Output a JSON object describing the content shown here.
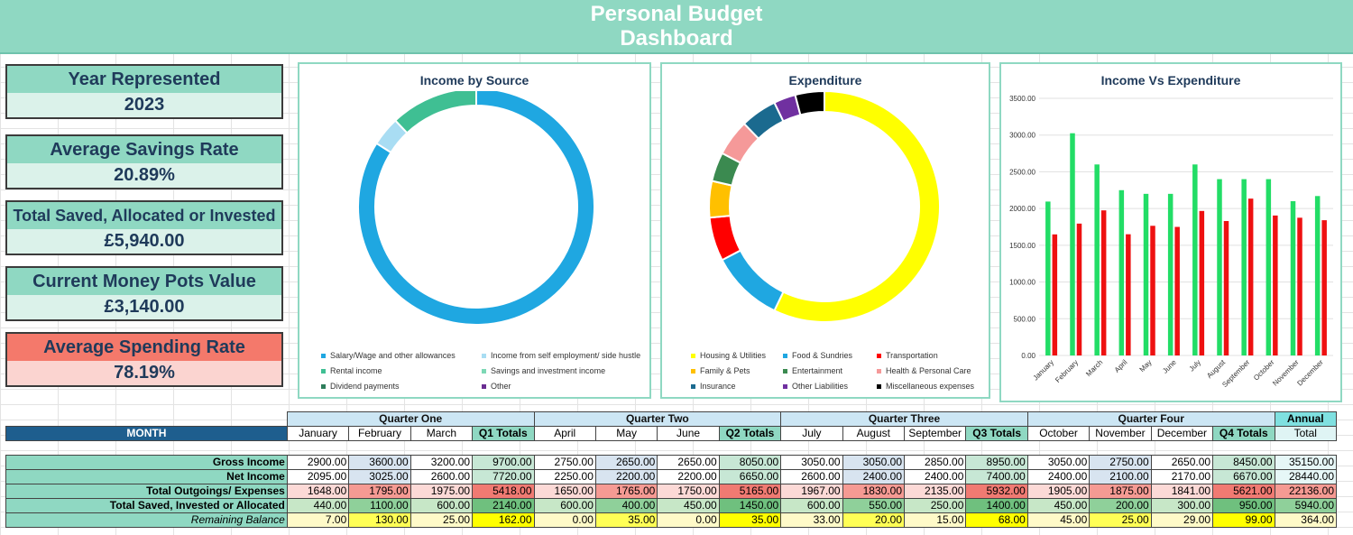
{
  "header": {
    "line1": "Personal Budget",
    "line2": "Dashboard"
  },
  "kpis": {
    "year": {
      "label": "Year Represented",
      "value": "2023"
    },
    "savings_rate": {
      "label": "Average Savings Rate",
      "value": "20.89%"
    },
    "total_saved": {
      "label": "Total Saved, Allocated or Invested",
      "value": "£5,940.00"
    },
    "money_pots": {
      "label": "Current Money Pots Value",
      "value": "£3,140.00"
    },
    "spending_rate": {
      "label": "Average Spending Rate",
      "value": "78.19%"
    }
  },
  "colors": {
    "accent": "#8fd8c2",
    "navy": "#1e5e8e",
    "income_bar": "#22dd66",
    "expense_bar": "#ee1111"
  },
  "chart_data": [
    {
      "type": "pie",
      "title": "Income by Source",
      "labels": [
        "Salary/Wage and other allowances",
        "Income from self employment/ side hustle",
        "Rental income",
        "Savings and investment income",
        "Dividend payments",
        "Other"
      ],
      "values": [
        84,
        4,
        12,
        0,
        0,
        0
      ],
      "colors": [
        "#1fa7e1",
        "#a9ddf3",
        "#3fbf93",
        "#7dd8b5",
        "#2e7d5b",
        "#6a2d91"
      ]
    },
    {
      "type": "pie",
      "title": "Expenditure",
      "labels": [
        "Housing & Utilities",
        "Food & Sundries",
        "Transportation",
        "Family & Pets",
        "Entertainment",
        "Health & Personal Care",
        "Insurance",
        "Other Liabilities",
        "Miscellaneous expenses"
      ],
      "values": [
        56,
        10,
        6,
        5,
        4,
        5,
        5,
        3,
        4
      ],
      "colors": [
        "#ffff00",
        "#1fa7e1",
        "#ff0000",
        "#ffc000",
        "#3b8a50",
        "#f59999",
        "#1b6a8f",
        "#7030a0",
        "#000000"
      ]
    },
    {
      "type": "bar",
      "title": "Income Vs Expenditure",
      "categories": [
        "January",
        "February",
        "March",
        "April",
        "May",
        "June",
        "July",
        "August",
        "September",
        "October",
        "November",
        "December"
      ],
      "series": [
        {
          "values": [
            2095,
            3025,
            2600,
            2250,
            2200,
            2200,
            2600,
            2400,
            2400,
            2400,
            2100,
            2170
          ],
          "color": "#22dd66"
        },
        {
          "values": [
            1648,
            1795,
            1975,
            1650,
            1765,
            1750,
            1967,
            1830,
            2135,
            1905,
            1875,
            1841
          ],
          "color": "#ee1111"
        }
      ],
      "yticks": [
        "0.00",
        "500.00",
        "1000.00",
        "1500.00",
        "2000.00",
        "2500.00",
        "3000.00",
        "3500.00"
      ],
      "ylim": [
        0,
        3500
      ]
    }
  ],
  "table": {
    "month_label": "MONTH",
    "quarters": [
      {
        "title": "Quarter One",
        "months": [
          "January",
          "February",
          "March"
        ],
        "total_label": "Q1 Totals"
      },
      {
        "title": "Quarter Two",
        "months": [
          "April",
          "May",
          "June"
        ],
        "total_label": "Q2 Totals"
      },
      {
        "title": "Quarter Three",
        "months": [
          "July",
          "August",
          "September"
        ],
        "total_label": "Q3 Totals"
      },
      {
        "title": "Quarter Four",
        "months": [
          "October",
          "November",
          "December"
        ],
        "total_label": "Q4 Totals"
      }
    ],
    "annual": {
      "title": "Annual",
      "sub": "Total"
    },
    "rows": [
      {
        "label": "Gross Income",
        "style": "gross",
        "values": [
          "2900.00",
          "3600.00",
          "3200.00",
          "9700.00",
          "2750.00",
          "2650.00",
          "2650.00",
          "8050.00",
          "3050.00",
          "3050.00",
          "2850.00",
          "8950.00",
          "3050.00",
          "2750.00",
          "2650.00",
          "8450.00",
          "35150.00"
        ]
      },
      {
        "label": "Net Income",
        "style": "net",
        "values": [
          "2095.00",
          "3025.00",
          "2600.00",
          "7720.00",
          "2250.00",
          "2200.00",
          "2200.00",
          "6650.00",
          "2600.00",
          "2400.00",
          "2400.00",
          "7400.00",
          "2400.00",
          "2100.00",
          "2170.00",
          "6670.00",
          "28440.00"
        ]
      },
      {
        "label": "Total Outgoings/ Expenses",
        "style": "out",
        "values": [
          "1648.00",
          "1795.00",
          "1975.00",
          "5418.00",
          "1650.00",
          "1765.00",
          "1750.00",
          "5165.00",
          "1967.00",
          "1830.00",
          "2135.00",
          "5932.00",
          "1905.00",
          "1875.00",
          "1841.00",
          "5621.00",
          "22136.00"
        ]
      },
      {
        "label": "Total Saved, Invested or Allocated",
        "style": "saved",
        "values": [
          "440.00",
          "1100.00",
          "600.00",
          "2140.00",
          "600.00",
          "400.00",
          "450.00",
          "1450.00",
          "600.00",
          "550.00",
          "250.00",
          "1400.00",
          "450.00",
          "200.00",
          "300.00",
          "950.00",
          "5940.00"
        ]
      },
      {
        "label": "Remaining Balance",
        "style": "rem",
        "values": [
          "7.00",
          "130.00",
          "25.00",
          "162.00",
          "0.00",
          "35.00",
          "0.00",
          "35.00",
          "33.00",
          "20.00",
          "15.00",
          "68.00",
          "45.00",
          "25.00",
          "29.00",
          "99.00",
          "364.00"
        ]
      }
    ]
  }
}
